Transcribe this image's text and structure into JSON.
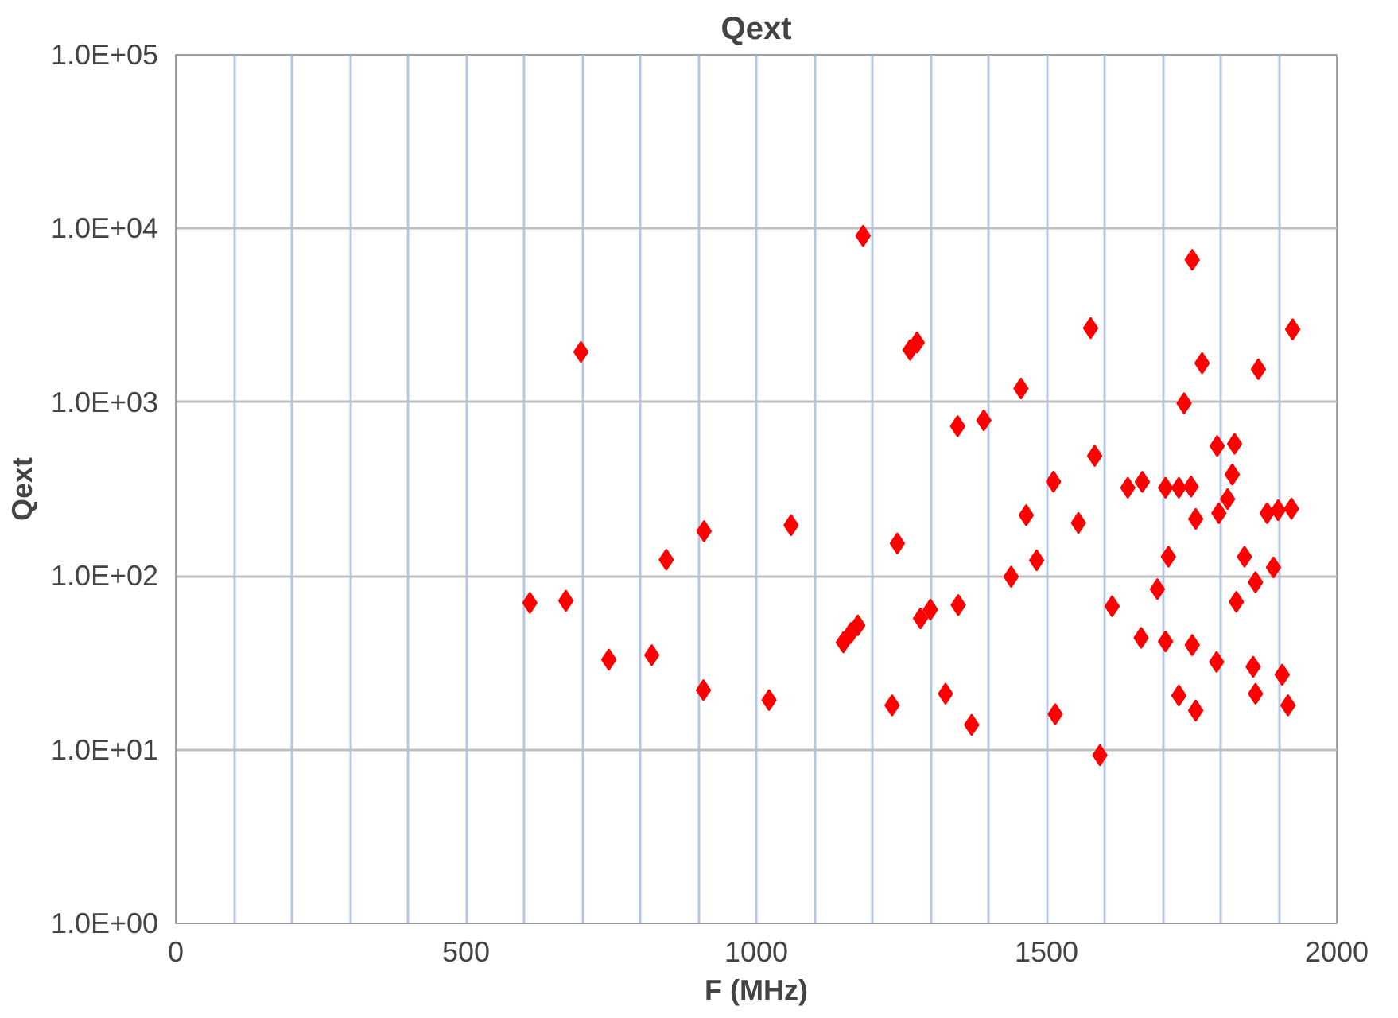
{
  "chart_data": {
    "type": "scatter",
    "title": "Qext",
    "xlabel": "F (MHz)",
    "ylabel": "Qext",
    "log": "y",
    "grid": true,
    "marker": "diamond",
    "xlim": [
      0,
      2000
    ],
    "xticks": [
      0,
      {
        "value": 100,
        "label": null
      },
      {
        "value": 200,
        "label": null
      },
      {
        "value": 300,
        "label": null
      },
      {
        "value": 400,
        "label": null
      },
      500,
      {
        "value": 600,
        "label": null
      },
      {
        "value": 700,
        "label": null
      },
      {
        "value": 800,
        "label": null
      },
      {
        "value": 900,
        "label": null
      },
      1000,
      {
        "value": 1100,
        "label": null
      },
      {
        "value": 1200,
        "label": null
      },
      {
        "value": 1300,
        "label": null
      },
      {
        "value": 1400,
        "label": null
      },
      1500,
      {
        "value": 1600,
        "label": null
      },
      {
        "value": 1700,
        "label": null
      },
      {
        "value": 1800,
        "label": null
      },
      {
        "value": 1900,
        "label": null
      },
      2000
    ],
    "ylim": [
      1,
      100000
    ],
    "yticks": [
      {
        "value": 1,
        "label": "1.0E+00"
      },
      {
        "value": 10,
        "label": "1.0E+01"
      },
      {
        "value": 100,
        "label": "1.0E+02"
      },
      {
        "value": 1000,
        "label": "1.0E+03"
      },
      {
        "value": 10000,
        "label": "1.0E+04"
      },
      {
        "value": 100000,
        "label": "1.0E+05"
      }
    ],
    "series": [
      {
        "color": "#ff0000",
        "x": [
          610,
          672,
          698,
          746,
          820,
          845,
          910,
          909,
          1022,
          1060,
          1184,
          1243,
          1234,
          1150,
          1163,
          1175,
          1265,
          1277,
          1283,
          1300,
          1347,
          1392,
          1456,
          1576,
          1751,
          1924,
          1768,
          1865,
          1737,
          1794,
          1824,
          1820,
          1812,
          1797,
          1583,
          1512,
          1640,
          1665,
          1705,
          1728,
          1749,
          1757,
          1880,
          1899,
          1922,
          1465,
          1555,
          1483,
          1439,
          1348,
          1710,
          1841,
          1891,
          1860,
          1691,
          1827,
          1613,
          1663,
          1705,
          1751,
          1793,
          1856,
          1906,
          1326,
          1371,
          1515,
          1592,
          1728,
          1757,
          1860,
          1916
        ],
        "values": [
          70,
          72,
          1950,
          33,
          35,
          124,
          181,
          22,
          19.3,
          196,
          9070,
          154,
          18,
          41.5,
          47,
          52,
          2000,
          2210,
          57,
          64,
          728,
          787,
          1200,
          2670,
          6600,
          2630,
          1680,
          1550,
          986,
          560,
          577,
          384,
          277,
          230,
          492,
          349,
          322,
          348,
          322,
          322,
          327,
          213,
          230,
          239,
          244,
          224,
          202,
          123,
          99,
          68,
          129,
          129,
          112,
          92,
          84,
          71,
          67,
          44,
          42,
          40,
          32,
          30,
          27,
          21,
          13.9,
          16,
          9.3,
          20.5,
          16.8,
          21,
          18
        ]
      }
    ]
  }
}
